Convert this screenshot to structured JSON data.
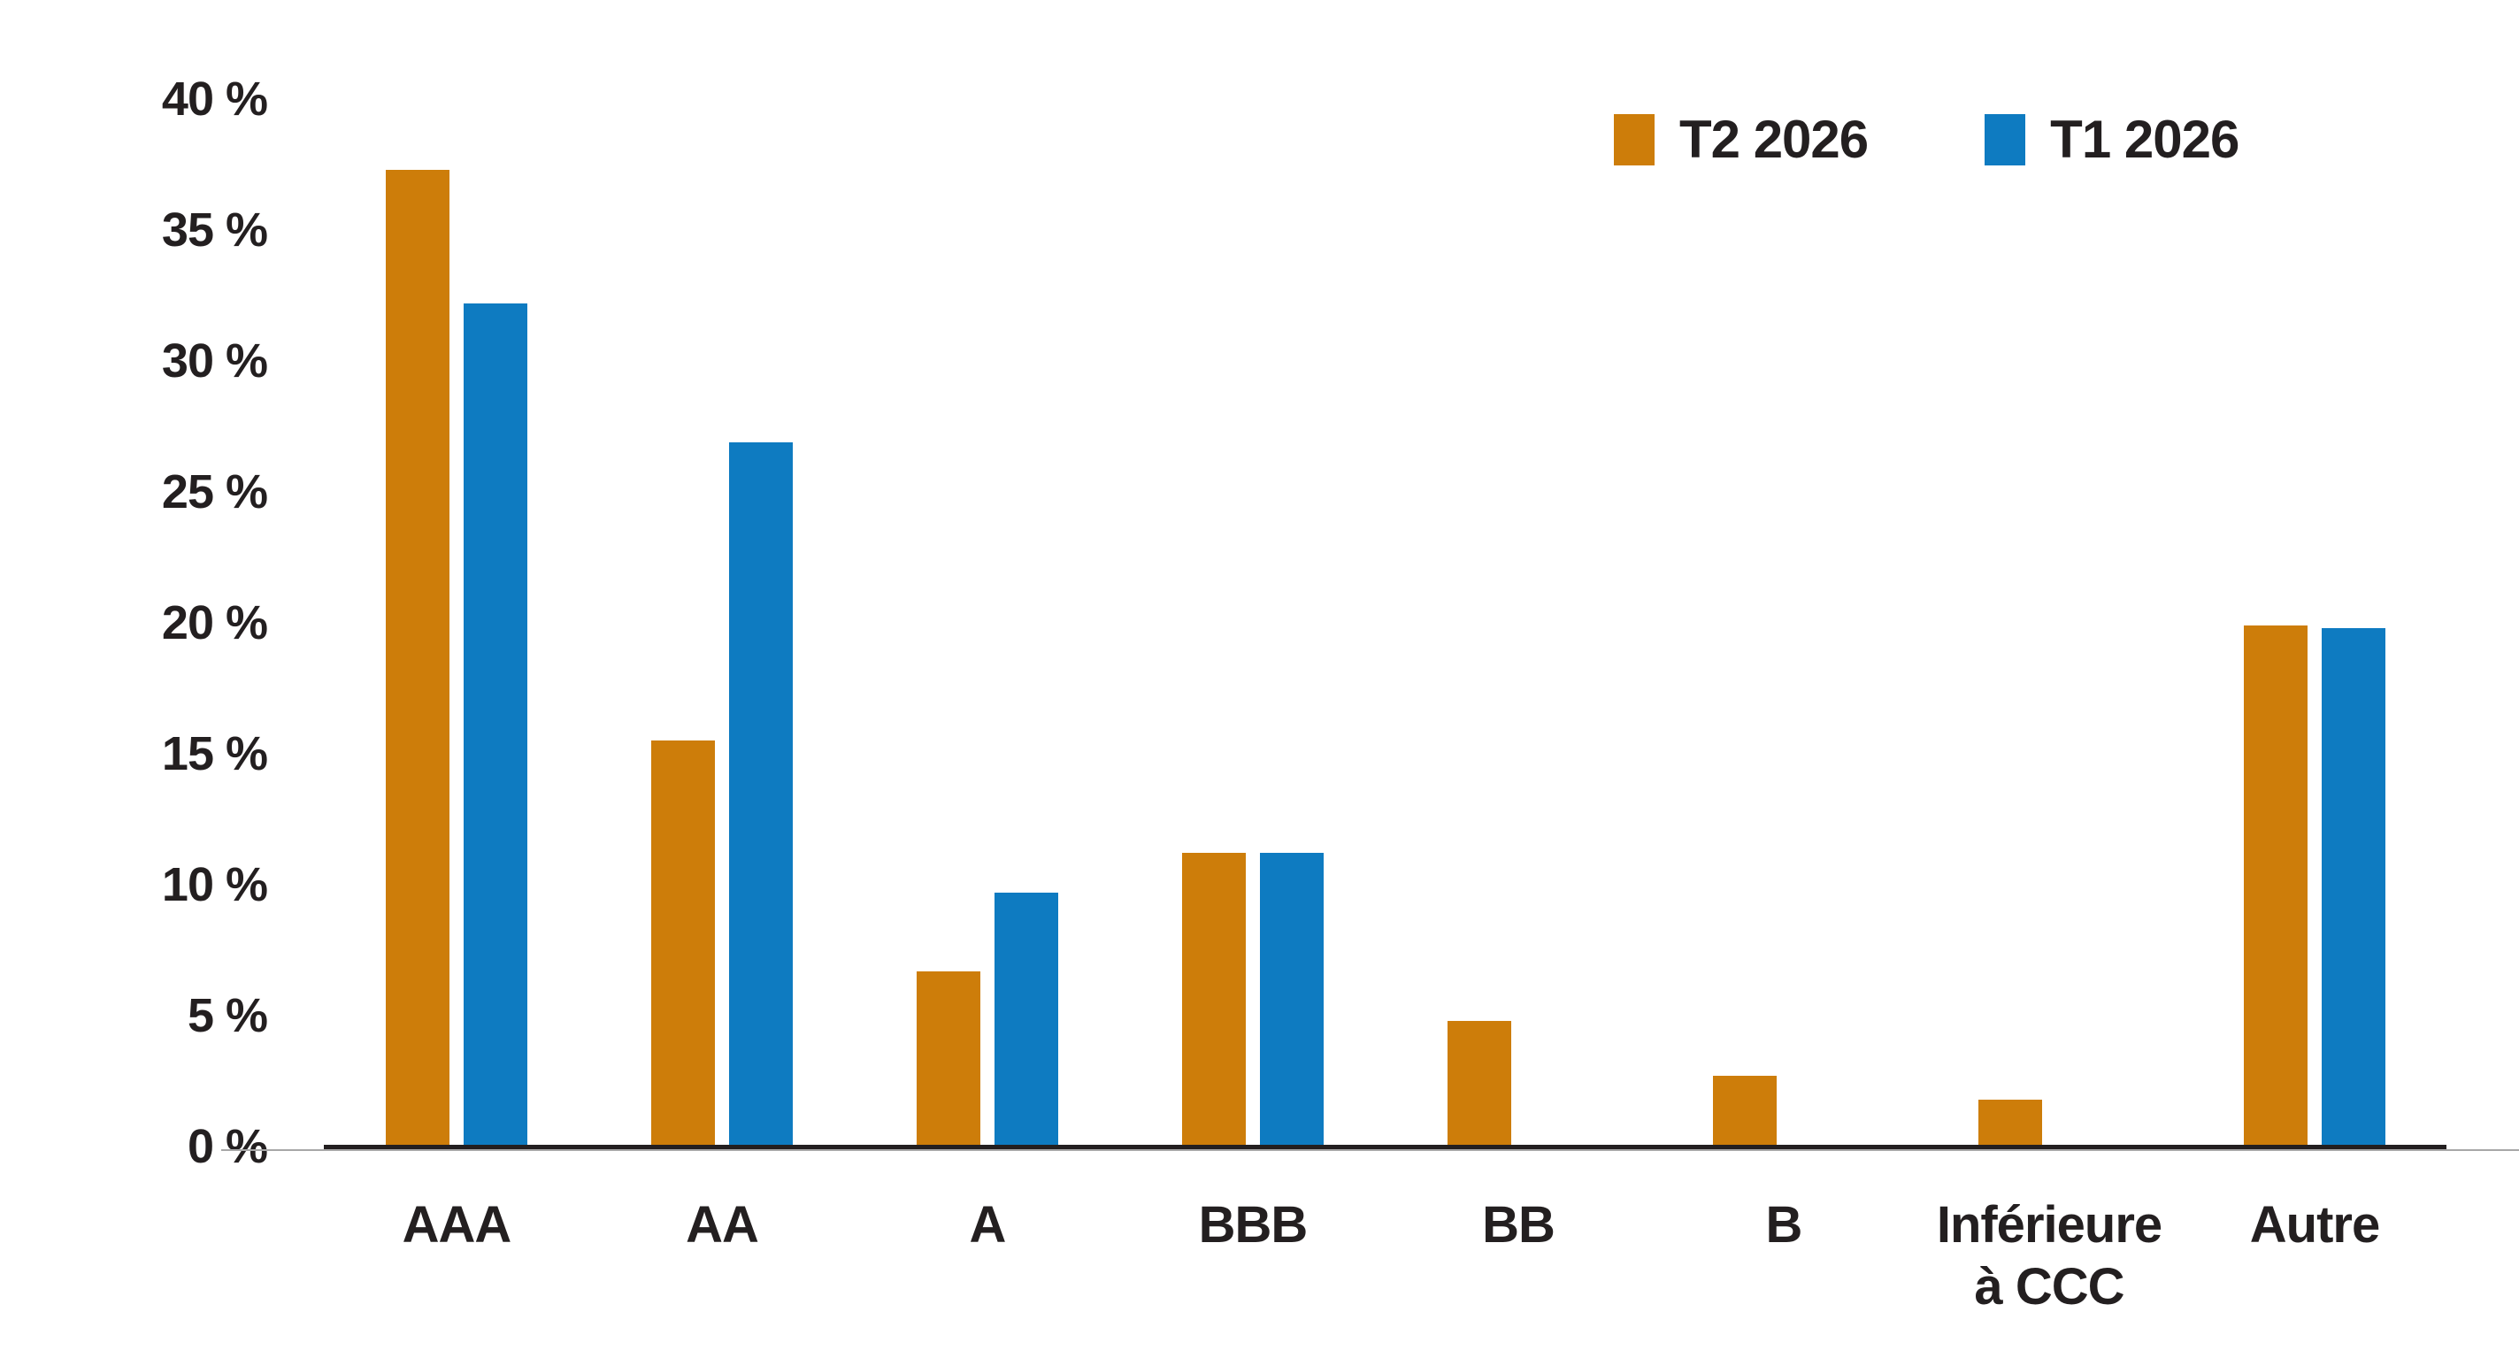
{
  "chart_data": {
    "type": "bar",
    "title": "",
    "xlabel": "",
    "ylabel": "",
    "categories": [
      "AAA",
      "AA",
      "A",
      "BBB",
      "BB",
      "B",
      "Inférieure\nà CCC",
      "Autre"
    ],
    "series": [
      {
        "name": "T2 2026",
        "color": "#CD7D0A",
        "values": [
          37.3,
          15.5,
          6.7,
          11.2,
          4.8,
          2.7,
          1.8,
          19.9
        ]
      },
      {
        "name": "T1 2026",
        "color": "#0E7BC1",
        "values": [
          32.2,
          26.9,
          9.7,
          11.2,
          null,
          null,
          null,
          19.8
        ]
      }
    ],
    "ylim": [
      0,
      40
    ],
    "y_tick_step": 5,
    "y_tick_labels": [
      "0 %",
      "5 %",
      "10 %",
      "15 %",
      "20 %",
      "25 %",
      "30 %",
      "35 %",
      "40 %"
    ],
    "grid": false,
    "legend_position": "top-right",
    "axis_color": "#231F20",
    "axis_underline_color": "#A7A7A7",
    "text_color": "#231F20",
    "background": "#FFFFFF"
  }
}
